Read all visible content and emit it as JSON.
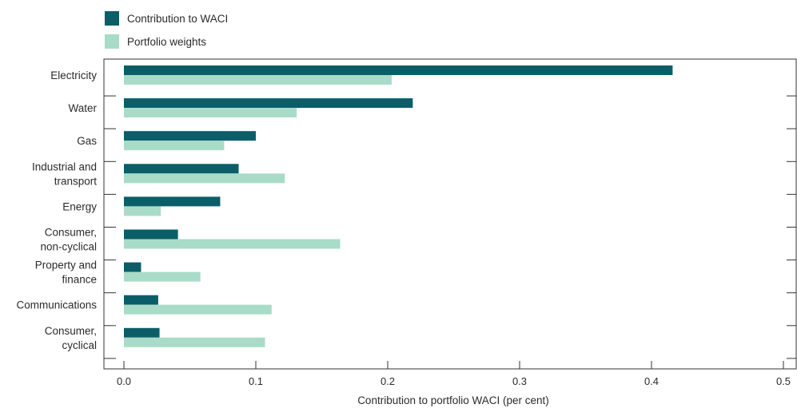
{
  "chart_data": {
    "type": "bar",
    "orientation": "horizontal",
    "categories": [
      [
        "Electricity"
      ],
      [
        "Water"
      ],
      [
        "Gas"
      ],
      [
        "Industrial and",
        "transport"
      ],
      [
        "Energy"
      ],
      [
        "Consumer,",
        "non-cyclical"
      ],
      [
        "Property and",
        "finance"
      ],
      [
        "Communications"
      ],
      [
        "Consumer,",
        "cyclical"
      ]
    ],
    "series": [
      {
        "name": "Contribution to WACI",
        "color": "#0b5e68",
        "values": [
          0.416,
          0.219,
          0.1,
          0.087,
          0.073,
          0.041,
          0.013,
          0.026,
          0.027
        ]
      },
      {
        "name": "Portfolio weights",
        "color": "#a8dcc8",
        "values": [
          0.203,
          0.131,
          0.076,
          0.122,
          0.028,
          0.164,
          0.058,
          0.112,
          0.107
        ]
      }
    ],
    "xlabel": "Contribution to portfolio WACI (per cent)",
    "ylabel": "",
    "xlim": [
      0,
      0.5
    ],
    "xticks": [
      "0.0",
      "0.1",
      "0.2",
      "0.3",
      "0.4",
      "0.5"
    ],
    "grid": false,
    "legend_position": "top-left"
  }
}
